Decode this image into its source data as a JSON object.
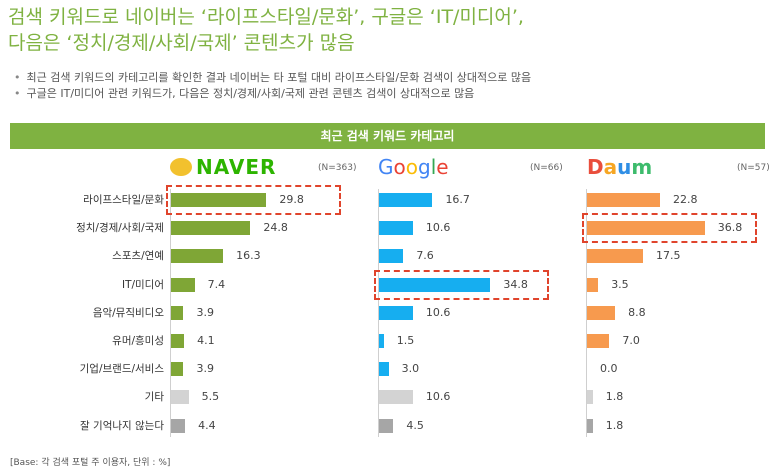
{
  "title_line1": "검색 키워드로 네이버는 ‘라이프스타일/문화’, 구글은 ‘IT/미디어’,",
  "title_line2": "다음은 ‘정치/경제/사회/국제’ 콘텐츠가 많음",
  "bullets": [
    "최근 검색 키워드의 카테고리를 확인한 결과 네이버는 타 포털 대비 라이프스타일/문화 검색이 상대적으로 많음",
    "구글은 IT/미디어 관련 키워드가, 다음은 정치/경제/사회/국제 관련 콘텐츠 검색이 상대적으로 많음"
  ],
  "banner": "최근 검색 키워드 카테고리",
  "base_note": "[Base: 각 검색 포털 주 이용자, 단위 : %]",
  "logos": {
    "naver": "NAVER",
    "google": "Google",
    "daum": "Daum"
  },
  "colors": {
    "naver": "#7fa636",
    "google": "#16aef0",
    "daum": "#f79a4e",
    "etc": "#d3d3d3",
    "dontknow": "#a6a6a6",
    "highlight": "#e0442c",
    "title": "#7fb241"
  },
  "chart_data": {
    "type": "bar",
    "orientation": "horizontal",
    "title": "최근 검색 키워드 카테고리",
    "categories": [
      "라이프스타일/문화",
      "정치/경제/사회/국제",
      "스포츠/연예",
      "IT/미디어",
      "음악/뮤직비디오",
      "유머/흥미성",
      "기업/브랜드/서비스",
      "기타",
      "잘 기억나지 않는다"
    ],
    "series": [
      {
        "name": "NAVER",
        "n": "(N=363)",
        "values": [
          29.8,
          24.8,
          16.3,
          7.4,
          3.9,
          4.1,
          3.9,
          5.5,
          4.4
        ],
        "highlight_index": 0
      },
      {
        "name": "Google",
        "n": "(N=66)",
        "values": [
          16.7,
          10.6,
          7.6,
          34.8,
          10.6,
          1.5,
          3.0,
          10.6,
          4.5
        ],
        "highlight_index": 3
      },
      {
        "name": "Daum",
        "n": "(N=57)",
        "values": [
          22.8,
          36.8,
          17.5,
          3.5,
          8.8,
          7.0,
          0.0,
          1.8,
          1.8
        ],
        "highlight_index": 1
      }
    ],
    "value_labels": [
      [
        "29.8",
        "24.8",
        "16.3",
        "7.4",
        "3.9",
        "4.1",
        "3.9",
        "5.5",
        "4.4"
      ],
      [
        "16.7",
        "10.6",
        "7.6",
        "34.8",
        "10.6",
        "1.5",
        "3.0",
        "10.6",
        "4.5"
      ],
      [
        "22.8",
        "36.8",
        "17.5",
        "3.5",
        "8.8",
        "7.0",
        "0.0",
        "1.8",
        "1.8"
      ]
    ],
    "unit": "%",
    "xlim": [
      0,
      40
    ],
    "grid": false,
    "legend": "none"
  }
}
